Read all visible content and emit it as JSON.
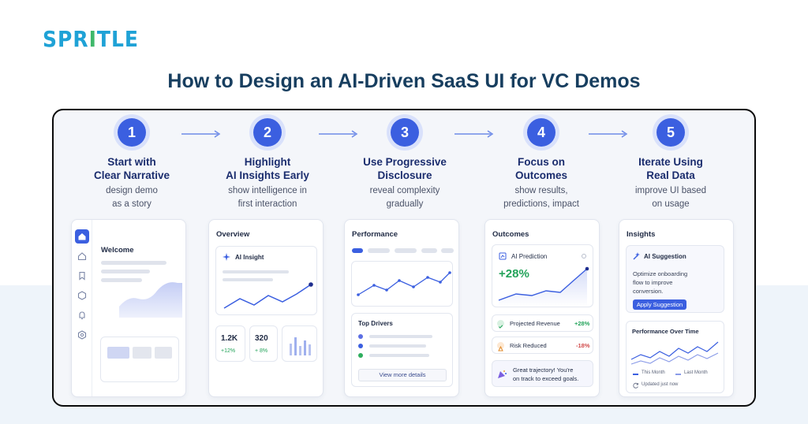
{
  "logo": {
    "part1": "SPR",
    "part2": "I",
    "part3": "TLE"
  },
  "title": "How to Design an AI-Driven SaaS UI for VC Demos",
  "steps": [
    {
      "num": "1",
      "title1": "Start with",
      "title2": "Clear Narrative",
      "desc1": "design demo",
      "desc2": "as a story"
    },
    {
      "num": "2",
      "title1": "Highlight",
      "title2": "AI Insights Early",
      "desc1": "show intelligence in",
      "desc2": "first interaction"
    },
    {
      "num": "3",
      "title1": "Use Progressive",
      "title2": "Disclosure",
      "desc1": "reveal complexity",
      "desc2": "gradually"
    },
    {
      "num": "4",
      "title1": "Focus on",
      "title2": "Outcomes",
      "desc1": "show results,",
      "desc2": "predictions, impact"
    },
    {
      "num": "5",
      "title1": "Iterate Using",
      "title2": "Real Data",
      "desc1": "improve UI based",
      "desc2": "on usage"
    }
  ],
  "card1": {
    "welcome": "Welcome",
    "icons": [
      "home-icon",
      "home-outline-icon",
      "bookmark-icon",
      "hexagon-icon",
      "bell-icon",
      "settings-icon"
    ]
  },
  "card2": {
    "header": "Overview",
    "insight": "AI Insight",
    "stat1_value": "1.2K",
    "stat1_change": "+12%",
    "stat2_value": "320",
    "stat2_change": "+ 8%"
  },
  "card3": {
    "header": "Performance",
    "drivers": "Top Drivers",
    "button": "View more details"
  },
  "card4": {
    "header": "Outcomes",
    "prediction": "AI Prediction",
    "prediction_value": "+28%",
    "row1_label": "Projected Revenue",
    "row1_value": "+28%",
    "row2_label": "Risk Reduced",
    "row2_value": "-18%",
    "message1": "Great trajectory! You're",
    "message2": "on track to exceed goals."
  },
  "card5": {
    "header": "Insights",
    "suggestion": "AI Suggestion",
    "text1": "Optimize onboarding",
    "text2": "flow to improve",
    "text3": "conversion.",
    "button": "Apply Suggestion",
    "perf_title": "Performance Over Time",
    "legend1": "This Month",
    "legend2": "Last Month",
    "updated": "Updated just now"
  },
  "colors": {
    "accent": "#3b5fe0",
    "title": "#173e5f",
    "positive": "#23a35a",
    "negative": "#d14b4b"
  }
}
